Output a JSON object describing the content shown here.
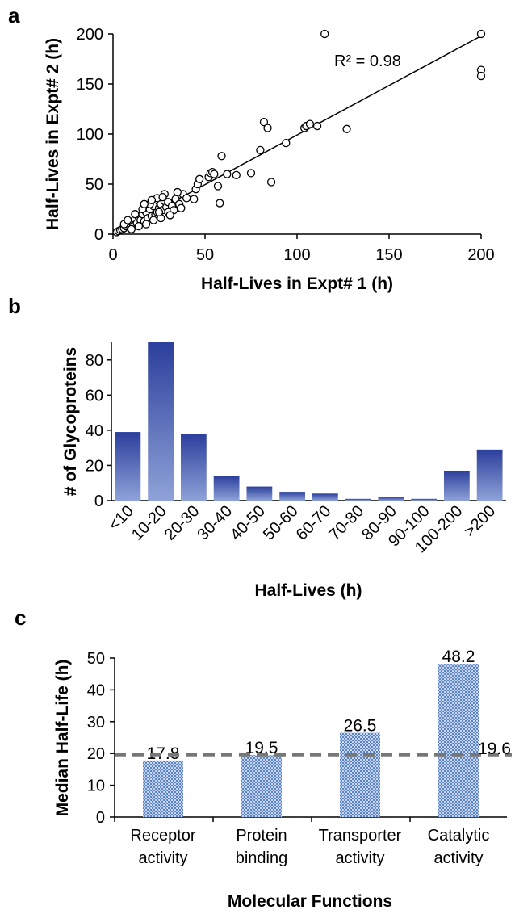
{
  "chart_data": [
    {
      "panel": "a",
      "type": "scatter",
      "xlabel": "Half-Lives in Expt# 1 (h)",
      "ylabel": "Half-Lives in  Expt# 2 (h)",
      "xlim": [
        0,
        200
      ],
      "ylim": [
        0,
        200
      ],
      "xticks": [
        "0",
        "50",
        "100",
        "150",
        "200"
      ],
      "yticks": [
        "0",
        "50",
        "100",
        "150",
        "200"
      ],
      "annotation": "R² = 0.98",
      "trendline": {
        "x": [
          2,
          200
        ],
        "y": [
          2,
          198
        ]
      },
      "points": [
        [
          2,
          2
        ],
        [
          3,
          3
        ],
        [
          4,
          4
        ],
        [
          5,
          5
        ],
        [
          6,
          6
        ],
        [
          7,
          8
        ],
        [
          8,
          10
        ],
        [
          9,
          9
        ],
        [
          10,
          12
        ],
        [
          11,
          8
        ],
        [
          12,
          15
        ],
        [
          13,
          11
        ],
        [
          14,
          17
        ],
        [
          15,
          14
        ],
        [
          16,
          20
        ],
        [
          17,
          13
        ],
        [
          18,
          22
        ],
        [
          19,
          16
        ],
        [
          20,
          25
        ],
        [
          21,
          18
        ],
        [
          22,
          28
        ],
        [
          23,
          20
        ],
        [
          24,
          22
        ],
        [
          25,
          26
        ],
        [
          26,
          30
        ],
        [
          27,
          24
        ],
        [
          28,
          33
        ],
        [
          29,
          27
        ],
        [
          30,
          32
        ],
        [
          32,
          28
        ],
        [
          34,
          35
        ],
        [
          36,
          30
        ],
        [
          38,
          40
        ],
        [
          40,
          36
        ],
        [
          6,
          10
        ],
        [
          8,
          14
        ],
        [
          10,
          5
        ],
        [
          12,
          20
        ],
        [
          14,
          8
        ],
        [
          16,
          25
        ],
        [
          18,
          10
        ],
        [
          20,
          30
        ],
        [
          22,
          14
        ],
        [
          24,
          36
        ],
        [
          26,
          16
        ],
        [
          28,
          40
        ],
        [
          30,
          22
        ],
        [
          33,
          24
        ],
        [
          35,
          42
        ],
        [
          17,
          30
        ],
        [
          21,
          34
        ],
        [
          25,
          22
        ],
        [
          27,
          37
        ],
        [
          31,
          19
        ],
        [
          37,
          26
        ],
        [
          44,
          35
        ],
        [
          45,
          45
        ],
        [
          46,
          50
        ],
        [
          47,
          55
        ],
        [
          52,
          57
        ],
        [
          53,
          61
        ],
        [
          54,
          62
        ],
        [
          55,
          60
        ],
        [
          57,
          48
        ],
        [
          58,
          31
        ],
        [
          59,
          78
        ],
        [
          62,
          60
        ],
        [
          67,
          59
        ],
        [
          75,
          61
        ],
        [
          80,
          84
        ],
        [
          82,
          112
        ],
        [
          84,
          106
        ],
        [
          86,
          52
        ],
        [
          94,
          91
        ],
        [
          104,
          106
        ],
        [
          105,
          108
        ],
        [
          107,
          110
        ],
        [
          111,
          108
        ],
        [
          115,
          200
        ],
        [
          127,
          105
        ],
        [
          200,
          200
        ],
        [
          200,
          164
        ],
        [
          200,
          158
        ]
      ]
    },
    {
      "panel": "b",
      "type": "bar",
      "xlabel": "Half-Lives (h)",
      "ylabel": "# of Glycoproteins",
      "ylim": [
        0,
        90
      ],
      "yticks": [
        "0",
        "20",
        "40",
        "60",
        "80"
      ],
      "categories": [
        "<10",
        "10-20",
        "20-30",
        "30-40",
        "40-50",
        "50-60",
        "60-70",
        "70-80",
        "80-90",
        "90-100",
        "100-200",
        ">200"
      ],
      "values": [
        39,
        90,
        38,
        14,
        8,
        5,
        4,
        1,
        2,
        1,
        17,
        29
      ]
    },
    {
      "panel": "c",
      "type": "bar",
      "xlabel": "Molecular Functions",
      "ylabel": "Median Half-Life (h)",
      "ylim": [
        0,
        50
      ],
      "yticks": [
        "0",
        "10",
        "20",
        "30",
        "40",
        "50"
      ],
      "categories": [
        [
          "Receptor",
          "activity"
        ],
        [
          "Protein",
          "binding"
        ],
        [
          "Transporter",
          "activity"
        ],
        [
          "Catalytic",
          "activity"
        ]
      ],
      "values": [
        17.8,
        19.5,
        26.5,
        48.2
      ],
      "value_labels": [
        "17.8",
        "19.5",
        "26.5",
        "48.2"
      ],
      "reference_line": {
        "value": 19.6,
        "label": "19.6"
      }
    }
  ]
}
